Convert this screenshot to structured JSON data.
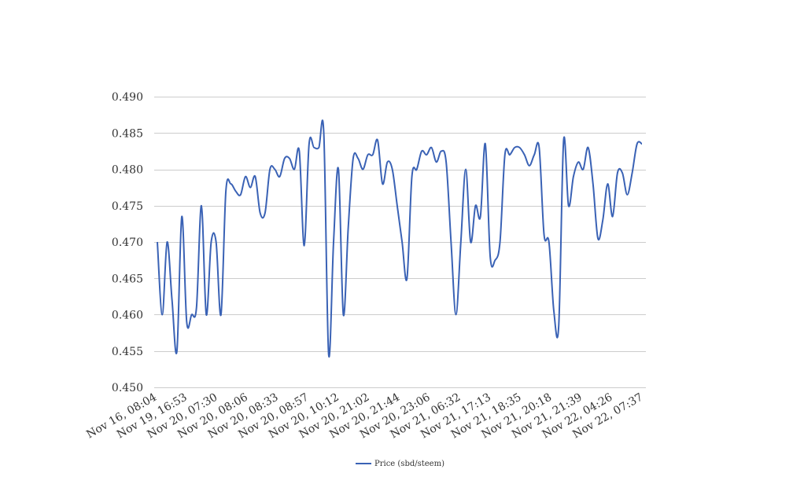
{
  "chart_data": {
    "type": "line",
    "title": "",
    "xlabel": "",
    "ylabel": "",
    "ylim": [
      0.45,
      0.49
    ],
    "yticks": [
      "0.450",
      "0.455",
      "0.460",
      "0.465",
      "0.470",
      "0.475",
      "0.480",
      "0.485",
      "0.490"
    ],
    "xtick_labels": [
      "Nov 16, 08:04",
      "Nov 19, 16:53",
      "Nov 20, 07:30",
      "Nov 20, 08:06",
      "Nov 20, 08:33",
      "Nov 20, 08:57",
      "Nov 20, 10:12",
      "Nov 20, 21:02",
      "Nov 20, 21:44",
      "Nov 20, 23:06",
      "Nov 21, 06:32",
      "Nov 21, 17:13",
      "Nov 21, 18:35",
      "Nov 21, 20:18",
      "Nov 21, 21:39",
      "Nov 22, 04:26",
      "Nov 22, 07:37"
    ],
    "grid": true,
    "legend_position": "bottom",
    "series": [
      {
        "name": "Price (sbd/steem)",
        "color": "#3a62b5",
        "values": [
          0.47,
          0.46,
          0.47,
          0.462,
          0.455,
          0.4735,
          0.459,
          0.46,
          0.461,
          0.475,
          0.46,
          0.47,
          0.47,
          0.46,
          0.477,
          0.478,
          0.477,
          0.4765,
          0.479,
          0.4775,
          0.479,
          0.474,
          0.474,
          0.48,
          0.48,
          0.479,
          0.4815,
          0.4815,
          0.48,
          0.4825,
          0.4695,
          0.4835,
          0.483,
          0.483,
          0.485,
          0.4545,
          0.47,
          0.48,
          0.46,
          0.472,
          0.4815,
          0.4815,
          0.48,
          0.482,
          0.482,
          0.484,
          0.478,
          0.481,
          0.48,
          0.475,
          0.47,
          0.465,
          0.479,
          0.48,
          0.4825,
          0.482,
          0.483,
          0.481,
          0.4825,
          0.481,
          0.47,
          0.46,
          0.47,
          0.48,
          0.47,
          0.475,
          0.4735,
          0.4835,
          0.468,
          0.4675,
          0.47,
          0.482,
          0.482,
          0.483,
          0.483,
          0.482,
          0.4805,
          0.482,
          0.483,
          0.471,
          0.47,
          0.4605,
          0.4585,
          0.484,
          0.475,
          0.479,
          0.481,
          0.48,
          0.483,
          0.478,
          0.4705,
          0.473,
          0.478,
          0.4735,
          0.4795,
          0.4795,
          0.4765,
          0.4795,
          0.4835,
          0.4835
        ]
      }
    ]
  }
}
